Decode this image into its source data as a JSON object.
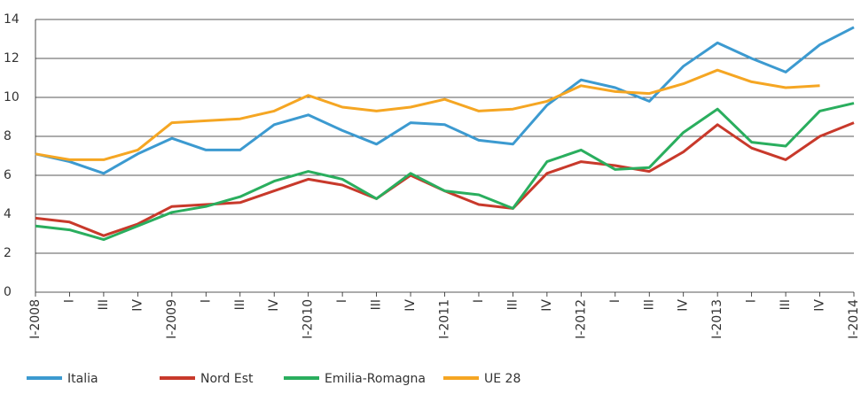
{
  "chart_data": {
    "type": "line",
    "categories": [
      "I-2008",
      "I",
      "III",
      "IV",
      "I-2009",
      "I",
      "III",
      "IV",
      "I-2010",
      "I",
      "III",
      "IV",
      "I-2011",
      "I",
      "III",
      "IV",
      "I-2012",
      "I",
      "III",
      "IV",
      "I-2013",
      "I",
      "III",
      "IV",
      "I-2014"
    ],
    "series": [
      {
        "name": "Italia",
        "color": "#3c9ad0",
        "values": [
          7.1,
          6.7,
          6.1,
          7.1,
          7.9,
          7.3,
          7.3,
          8.6,
          9.1,
          8.3,
          7.6,
          8.7,
          8.6,
          7.8,
          7.6,
          9.6,
          10.9,
          10.5,
          9.8,
          11.6,
          12.8,
          12.0,
          11.3,
          12.7,
          13.6
        ]
      },
      {
        "name": "Nord Est",
        "color": "#c8392b",
        "values": [
          3.8,
          3.6,
          2.9,
          3.5,
          4.4,
          4.5,
          4.6,
          5.2,
          5.8,
          5.5,
          4.8,
          6.0,
          5.2,
          4.5,
          4.3,
          6.1,
          6.7,
          6.5,
          6.2,
          7.2,
          8.6,
          7.4,
          6.8,
          8.0,
          8.7
        ]
      },
      {
        "name": "Emilia-Romagna",
        "color": "#2aae5e",
        "values": [
          3.4,
          3.2,
          2.7,
          3.4,
          4.1,
          4.4,
          4.9,
          5.7,
          6.2,
          5.8,
          4.8,
          6.1,
          5.2,
          5.0,
          4.3,
          6.7,
          7.3,
          6.3,
          6.4,
          8.2,
          9.4,
          7.7,
          7.5,
          9.3,
          9.7
        ]
      },
      {
        "name": "UE 28",
        "color": "#f5a623",
        "values": [
          7.1,
          6.8,
          6.8,
          7.3,
          8.7,
          8.8,
          8.9,
          9.3,
          10.1,
          9.5,
          9.3,
          9.5,
          9.9,
          9.3,
          9.4,
          9.8,
          10.6,
          10.3,
          10.2,
          10.7,
          11.4,
          10.8,
          10.5,
          10.6,
          null
        ]
      }
    ],
    "ylim": [
      0,
      14
    ],
    "yticks": [
      0,
      2,
      4,
      6,
      8,
      10,
      12,
      14
    ],
    "grid": true
  }
}
